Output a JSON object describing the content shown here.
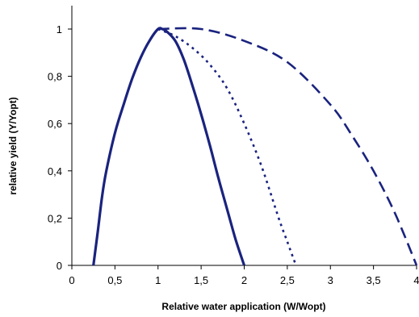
{
  "chart_data": {
    "type": "line",
    "title": "",
    "xlabel": "Relative  water application (W/Wopt)",
    "ylabel": "relative yield (Y/Yopt)",
    "xlim": [
      0,
      4
    ],
    "ylim": [
      0,
      1
    ],
    "x_ticks": [
      "0",
      "0,5",
      "1",
      "1,5",
      "2",
      "2,5",
      "3",
      "3,5",
      "4"
    ],
    "y_ticks": [
      "0",
      "0,2",
      "0,4",
      "0,6",
      "0,8",
      "1"
    ],
    "grid": false,
    "legend": "none",
    "series": [
      {
        "style": "solid",
        "color": "#1a237e",
        "points": [
          [
            0.25,
            0
          ],
          [
            0.3,
            0.14
          ],
          [
            0.35,
            0.29
          ],
          [
            0.4,
            0.4
          ],
          [
            0.5,
            0.56
          ],
          [
            0.6,
            0.68
          ],
          [
            0.7,
            0.79
          ],
          [
            0.8,
            0.88
          ],
          [
            0.9,
            0.95
          ],
          [
            1.0,
            1.0
          ],
          [
            1.05,
            1.0
          ],
          [
            1.1,
            0.99
          ],
          [
            1.2,
            0.95
          ],
          [
            1.3,
            0.87
          ],
          [
            1.4,
            0.76
          ],
          [
            1.5,
            0.64
          ],
          [
            1.6,
            0.51
          ],
          [
            1.7,
            0.37
          ],
          [
            1.8,
            0.24
          ],
          [
            1.9,
            0.11
          ],
          [
            2.0,
            0
          ]
        ]
      },
      {
        "style": "dotted",
        "color": "#1a237e",
        "points": [
          [
            1.0,
            1.0
          ],
          [
            1.2,
            0.97
          ],
          [
            1.4,
            0.92
          ],
          [
            1.6,
            0.85
          ],
          [
            1.8,
            0.75
          ],
          [
            2.0,
            0.6
          ],
          [
            2.2,
            0.42
          ],
          [
            2.4,
            0.2
          ],
          [
            2.5,
            0.1
          ],
          [
            2.6,
            0
          ]
        ]
      },
      {
        "style": "dashed",
        "color": "#1a237e",
        "points": [
          [
            1.0,
            1.0
          ],
          [
            1.5,
            1.0
          ],
          [
            2.0,
            0.95
          ],
          [
            2.5,
            0.86
          ],
          [
            3.0,
            0.68
          ],
          [
            3.25,
            0.55
          ],
          [
            3.5,
            0.4
          ],
          [
            3.75,
            0.22
          ],
          [
            4.0,
            0
          ]
        ]
      }
    ]
  }
}
